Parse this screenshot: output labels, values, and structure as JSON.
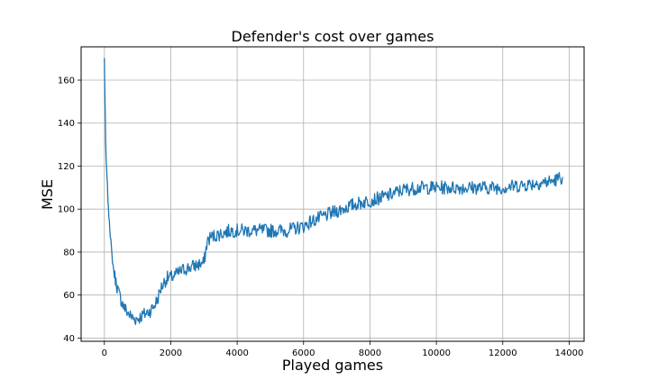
{
  "chart_data": {
    "type": "line",
    "title": "Defender's cost over games",
    "xlabel": "Played games",
    "ylabel": "MSE",
    "xlim": [
      -700,
      14450
    ],
    "ylim": [
      38.5,
      175.5
    ],
    "xticks": [
      0,
      2000,
      4000,
      6000,
      8000,
      10000,
      12000,
      14000
    ],
    "yticks": [
      40,
      60,
      80,
      100,
      120,
      140,
      160
    ],
    "grid": true,
    "series": [
      {
        "color": "#1f77b4",
        "x": [
          0,
          20,
          40,
          60,
          80,
          100,
          120,
          150,
          180,
          200,
          230,
          260,
          300,
          350,
          400,
          450,
          500,
          550,
          600,
          700,
          800,
          900,
          1000,
          1100,
          1200,
          1300,
          1400,
          1500,
          1600,
          1700,
          1800,
          1900,
          2000,
          2100,
          2200,
          2400,
          2600,
          2800,
          3000,
          3050,
          3100,
          3200,
          3400,
          3600,
          3800,
          4000,
          4500,
          5000,
          5500,
          6000,
          6200,
          6500,
          7000,
          7500,
          8000,
          8500,
          9000,
          9500,
          10000,
          10500,
          11000,
          11500,
          12000,
          12500,
          13000,
          13500,
          13800
        ],
        "y": [
          170,
          150,
          130,
          120,
          115,
          108,
          100,
          95,
          88,
          84,
          78,
          74,
          70,
          66,
          63,
          60,
          58,
          56,
          54,
          52,
          50,
          49,
          49,
          50,
          51,
          52,
          53,
          55,
          58,
          63,
          66,
          68,
          68,
          69,
          70,
          72,
          73,
          74,
          75,
          80,
          85,
          87,
          88,
          89,
          90,
          90,
          90,
          90,
          90,
          92,
          94,
          96,
          99,
          102,
          104,
          106,
          109,
          110,
          110,
          110,
          110,
          110,
          110,
          111,
          112,
          113,
          115
        ]
      }
    ]
  }
}
